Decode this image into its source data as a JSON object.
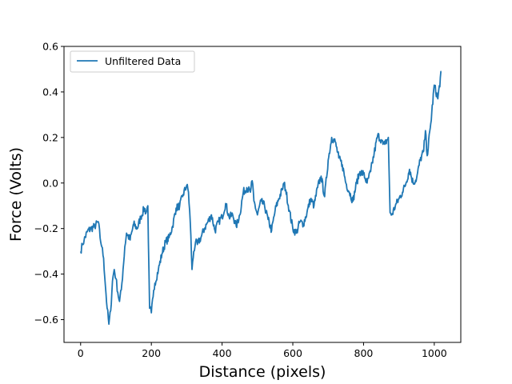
{
  "chart_data": {
    "type": "line",
    "title": "",
    "xlabel": "Distance (pixels)",
    "ylabel": "Force (Volts)",
    "xlim": [
      -47,
      1075
    ],
    "ylim": [
      -0.7,
      0.6
    ],
    "xticks": [
      0,
      200,
      400,
      600,
      800,
      1000
    ],
    "yticks": [
      -0.6,
      -0.4,
      -0.2,
      0.0,
      0.2,
      0.4,
      0.6
    ],
    "xtick_labels": [
      "0",
      "200",
      "400",
      "600",
      "800",
      "1000"
    ],
    "ytick_labels": [
      "−0.6",
      "−0.4",
      "−0.2",
      "0.0",
      "0.2",
      "0.4",
      "0.6"
    ],
    "grid": false,
    "legend": {
      "position": "top-left"
    },
    "series": [
      {
        "name": "Unfiltered Data",
        "color": "#1f77b4",
        "x": [
          0,
          5,
          10,
          20,
          30,
          40,
          50,
          55,
          60,
          65,
          70,
          75,
          80,
          85,
          90,
          95,
          100,
          105,
          110,
          115,
          120,
          125,
          130,
          140,
          150,
          160,
          170,
          180,
          185,
          190,
          195,
          200,
          205,
          210,
          220,
          230,
          240,
          250,
          260,
          270,
          280,
          290,
          300,
          305,
          310,
          315,
          320,
          325,
          330,
          340,
          350,
          360,
          370,
          380,
          390,
          400,
          410,
          420,
          430,
          440,
          450,
          460,
          470,
          480,
          485,
          490,
          500,
          510,
          520,
          530,
          540,
          550,
          560,
          570,
          575,
          580,
          590,
          600,
          610,
          620,
          630,
          640,
          650,
          660,
          670,
          680,
          690,
          700,
          710,
          720,
          730,
          740,
          750,
          760,
          770,
          780,
          790,
          800,
          810,
          820,
          830,
          840,
          850,
          855,
          860,
          870,
          875,
          880,
          890,
          900,
          910,
          920,
          930,
          940,
          950,
          960,
          970,
          975,
          980,
          990,
          1000,
          1010,
          1020
        ],
        "y": [
          -0.3,
          -0.27,
          -0.25,
          -0.21,
          -0.2,
          -0.19,
          -0.17,
          -0.24,
          -0.28,
          -0.33,
          -0.45,
          -0.55,
          -0.62,
          -0.56,
          -0.43,
          -0.38,
          -0.42,
          -0.48,
          -0.52,
          -0.47,
          -0.38,
          -0.28,
          -0.22,
          -0.25,
          -0.18,
          -0.2,
          -0.15,
          -0.11,
          -0.13,
          -0.1,
          -0.55,
          -0.57,
          -0.5,
          -0.44,
          -0.38,
          -0.31,
          -0.26,
          -0.24,
          -0.19,
          -0.11,
          -0.1,
          -0.05,
          -0.01,
          -0.04,
          -0.17,
          -0.38,
          -0.3,
          -0.26,
          -0.27,
          -0.24,
          -0.2,
          -0.17,
          -0.14,
          -0.21,
          -0.17,
          -0.15,
          -0.09,
          -0.15,
          -0.14,
          -0.19,
          -0.14,
          -0.04,
          -0.02,
          -0.04,
          0.01,
          -0.08,
          -0.14,
          -0.08,
          -0.1,
          -0.16,
          -0.21,
          -0.12,
          -0.07,
          -0.03,
          0.0,
          -0.03,
          -0.12,
          -0.2,
          -0.22,
          -0.17,
          -0.18,
          -0.13,
          -0.07,
          -0.1,
          -0.02,
          0.03,
          -0.06,
          0.1,
          0.2,
          0.18,
          0.11,
          0.08,
          0.0,
          -0.04,
          -0.08,
          0.0,
          0.05,
          0.04,
          0.0,
          0.05,
          0.13,
          0.21,
          0.19,
          0.17,
          0.17,
          0.2,
          -0.13,
          -0.14,
          -0.1,
          -0.07,
          -0.04,
          0.0,
          0.06,
          0.0,
          0.02,
          0.1,
          0.14,
          0.23,
          0.12,
          0.26,
          0.43,
          0.37,
          0.49
        ]
      }
    ]
  }
}
